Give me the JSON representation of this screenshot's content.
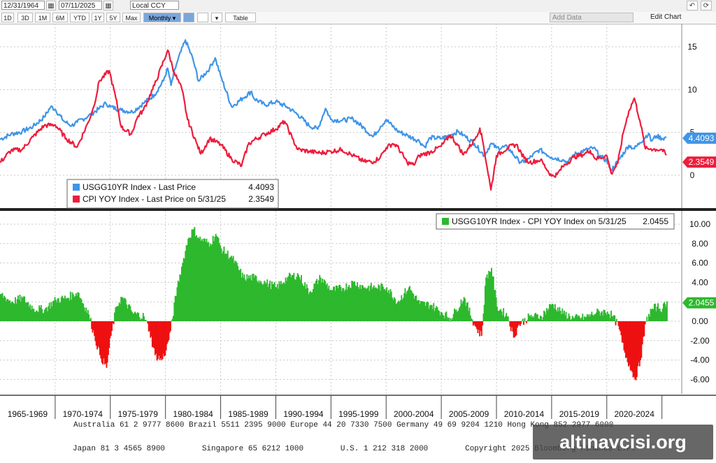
{
  "toolbar": {
    "start_date": "12/31/1964",
    "end_date": "07/11/2025",
    "currency": "Local CCY",
    "ranges": [
      "1D",
      "3D",
      "1M",
      "6M",
      "YTD",
      "1Y",
      "5Y",
      "Max"
    ],
    "period": "Monthly ▾",
    "table_label": "Table",
    "add_data": "Add Data",
    "edit_chart": "Edit Chart"
  },
  "colors": {
    "blue": "#3f95e8",
    "red": "#ee1c3c",
    "green": "#2db82d",
    "neg": "#ee1111"
  },
  "chart_data": [
    {
      "type": "line",
      "series": [
        {
          "name": "USGG10YR Index - Last Price",
          "last_label": "4.4093",
          "color": "#3f95e8",
          "x": [
            1965.0,
            1966.0,
            1967.0,
            1968.0,
            1969.0,
            1969.6,
            1970.0,
            1970.8,
            1971.5,
            1972.0,
            1973.0,
            1974.0,
            1974.6,
            1975.0,
            1976.0,
            1977.0,
            1978.0,
            1979.0,
            1979.8,
            1980.2,
            1980.5,
            1981.0,
            1981.8,
            1982.5,
            1983.0,
            1984.0,
            1984.5,
            1985.0,
            1986.0,
            1987.0,
            1987.8,
            1988.0,
            1989.0,
            1990.0,
            1991.0,
            1992.0,
            1993.0,
            1993.8,
            1994.5,
            1995.0,
            1996.0,
            1997.0,
            1998.0,
            1998.8,
            1999.5,
            2000.0,
            2001.0,
            2002.0,
            2003.0,
            2003.5,
            2004.0,
            2005.0,
            2006.0,
            2006.5,
            2007.0,
            2008.0,
            2008.9,
            2009.5,
            2010.0,
            2011.0,
            2012.0,
            2012.5,
            2013.0,
            2013.9,
            2014.5,
            2015.0,
            2016.0,
            2016.5,
            2017.0,
            2018.0,
            2018.8,
            2019.5,
            2020.0,
            2020.4,
            2021.0,
            2022.0,
            2022.5,
            2023.0,
            2023.8,
            2024.0,
            2024.5,
            2025.0,
            2025.4
          ],
          "y": [
            4.2,
            4.8,
            5.1,
            5.7,
            6.8,
            8.0,
            7.7,
            6.3,
            5.8,
            6.2,
            6.9,
            7.8,
            8.4,
            8.0,
            7.6,
            7.4,
            8.4,
            9.4,
            11.0,
            12.5,
            10.5,
            13.0,
            15.8,
            13.5,
            11.0,
            12.5,
            13.7,
            11.6,
            8.0,
            9.0,
            9.8,
            9.0,
            8.2,
            8.6,
            8.0,
            7.1,
            5.8,
            5.4,
            7.8,
            6.5,
            6.4,
            6.6,
            5.5,
            4.5,
            5.7,
            6.5,
            5.2,
            4.6,
            4.0,
            3.3,
            4.4,
            4.3,
            4.8,
            5.1,
            4.7,
            3.7,
            2.3,
            3.7,
            3.2,
            3.3,
            1.7,
            1.5,
            2.0,
            3.0,
            2.5,
            2.1,
            1.8,
            1.5,
            2.4,
            2.9,
            3.2,
            2.1,
            1.7,
            0.6,
            1.6,
            3.5,
            3.1,
            3.8,
            4.9,
            4.0,
            4.6,
            4.3,
            4.4
          ]
        },
        {
          "name": "CPI YOY Index - Last Price on 5/31/25",
          "last_label": "2.3549",
          "color": "#ee1c3c",
          "x": [
            1965.0,
            1966.0,
            1967.0,
            1968.0,
            1969.0,
            1970.0,
            1971.0,
            1972.0,
            1973.0,
            1973.5,
            1974.0,
            1974.9,
            1975.5,
            1976.0,
            1976.9,
            1977.5,
            1978.0,
            1979.0,
            1980.2,
            1980.8,
            1981.5,
            1982.0,
            1982.8,
            1983.2,
            1984.0,
            1985.0,
            1986.0,
            1986.9,
            1987.5,
            1988.0,
            1989.0,
            1990.0,
            1990.8,
            1991.5,
            1992.0,
            1993.0,
            1994.0,
            1995.0,
            1996.0,
            1997.0,
            1998.0,
            1998.9,
            1999.5,
            2000.0,
            2000.6,
            2001.0,
            2001.9,
            2002.5,
            2003.0,
            2004.0,
            2005.0,
            2005.8,
            2006.5,
            2007.0,
            2008.0,
            2008.5,
            2008.8,
            2009.5,
            2010.0,
            2011.0,
            2011.8,
            2012.5,
            2013.0,
            2014.0,
            2015.0,
            2015.5,
            2016.0,
            2017.0,
            2018.0,
            2018.5,
            2019.0,
            2020.0,
            2020.4,
            2021.0,
            2021.5,
            2022.0,
            2022.5,
            2023.0,
            2023.5,
            2024.0,
            2024.5,
            2025.0,
            2025.4
          ],
          "y": [
            1.5,
            2.9,
            3.0,
            4.5,
            5.8,
            5.9,
            4.3,
            3.3,
            6.2,
            8.0,
            11.0,
            12.2,
            9.0,
            5.6,
            4.8,
            6.9,
            7.6,
            10.5,
            14.6,
            12.0,
            10.0,
            6.5,
            3.8,
            2.5,
            4.3,
            3.6,
            1.9,
            1.1,
            3.6,
            4.1,
            4.8,
            5.4,
            6.3,
            4.3,
            3.0,
            2.8,
            2.6,
            2.8,
            3.0,
            2.3,
            1.6,
            1.6,
            2.2,
            3.2,
            3.7,
            3.4,
            1.5,
            1.2,
            2.3,
            2.7,
            3.4,
            4.7,
            3.5,
            2.4,
            4.1,
            5.5,
            3.7,
            -1.7,
            2.3,
            3.2,
            3.6,
            2.0,
            1.5,
            1.8,
            -0.1,
            0.1,
            1.0,
            2.1,
            2.5,
            2.9,
            1.9,
            2.3,
            0.2,
            1.4,
            5.0,
            7.5,
            9.0,
            6.4,
            3.1,
            3.1,
            3.0,
            3.0,
            2.35
          ]
        }
      ],
      "ylim": [
        -2,
        17
      ],
      "yticks": [
        "0",
        "5",
        "10",
        "15"
      ],
      "legend": [
        {
          "name": "USGG10YR Index - Last Price",
          "value": "4.4093"
        },
        {
          "name": "CPI YOY Index - Last Price on 5/31/25",
          "value": "2.3549"
        }
      ]
    },
    {
      "type": "area",
      "series": [
        {
          "name": "USGG10YR Index - CPI YOY Index on 5/31/25",
          "last_label": "2.0455",
          "x": [
            1965.0,
            1966.0,
            1967.0,
            1968.0,
            1969.0,
            1970.0,
            1971.0,
            1972.0,
            1973.0,
            1973.5,
            1974.0,
            1974.6,
            1975.0,
            1975.5,
            1976.0,
            1977.0,
            1978.0,
            1978.5,
            1979.0,
            1979.6,
            1980.0,
            1980.4,
            1981.0,
            1981.5,
            1982.0,
            1982.5,
            1983.0,
            1984.0,
            1984.5,
            1985.0,
            1986.0,
            1987.0,
            1988.0,
            1989.0,
            1990.0,
            1991.0,
            1992.0,
            1993.0,
            1994.0,
            1995.0,
            1996.0,
            1997.0,
            1998.0,
            1999.0,
            2000.0,
            2001.0,
            2002.0,
            2003.0,
            2004.0,
            2005.0,
            2005.8,
            2006.3,
            2007.0,
            2008.0,
            2008.6,
            2009.0,
            2009.5,
            2010.0,
            2011.0,
            2011.5,
            2012.0,
            2013.0,
            2014.0,
            2015.0,
            2016.0,
            2017.0,
            2018.0,
            2019.0,
            2020.0,
            2020.5,
            2021.0,
            2021.5,
            2022.0,
            2022.5,
            2023.0,
            2023.5,
            2024.0,
            2024.5,
            2025.0,
            2025.4
          ],
          "y": [
            2.8,
            2.0,
            2.4,
            1.3,
            1.2,
            2.2,
            2.4,
            3.0,
            0.7,
            -1.5,
            -3.5,
            -4.8,
            -1.5,
            1.5,
            2.5,
            0.8,
            0.5,
            -1.0,
            -3.5,
            -4.0,
            -3.0,
            -1.0,
            3.5,
            6.0,
            8.5,
            9.5,
            8.5,
            8.0,
            9.0,
            7.5,
            6.5,
            4.5,
            4.5,
            4.0,
            3.5,
            4.5,
            4.8,
            3.0,
            4.5,
            3.2,
            3.4,
            4.0,
            3.5,
            3.5,
            3.5,
            2.0,
            3.5,
            1.8,
            1.7,
            0.9,
            0.3,
            1.2,
            2.5,
            -0.5,
            -1.5,
            4.5,
            5.5,
            1.5,
            0.5,
            -1.7,
            -0.3,
            0.5,
            0.5,
            1.8,
            0.8,
            0.3,
            0.4,
            0.9,
            1.0,
            0.5,
            -0.5,
            -3.0,
            -4.5,
            -6.0,
            -4.0,
            0.0,
            1.2,
            1.5,
            1.3,
            2.05
          ]
        }
      ],
      "ylim": [
        -7,
        11
      ],
      "yticks": [
        "10.00",
        "8.00",
        "6.00",
        "4.00",
        "2.00",
        "0.00",
        "-2.00",
        "-4.00",
        "-6.00"
      ],
      "legend": [
        {
          "name": "USGG10YR Index - CPI YOY Index on 5/31/25",
          "value": "2.0455"
        }
      ]
    }
  ],
  "x_axis": {
    "ticks": [
      "1965-1969",
      "1970-1974",
      "1975-1979",
      "1980-1984",
      "1985-1989",
      "1990-1994",
      "1995-1999",
      "2000-2004",
      "2005-2009",
      "2010-2014",
      "2015-2019",
      "2020-2024"
    ]
  },
  "footer": {
    "line1": "Australia 61 2 9777 8600 Brazil 5511 2395 9000 Europe 44 20 7330 7500 Germany 49 69 9204 1210 Hong Kong 852 2977 6000",
    "line2": "Japan 81 3 4565 8900        Singapore 65 6212 1000        U.S. 1 212 318 2000        Copyright 2025 Bloomberg Finance L.P."
  },
  "watermark": "altinavcisi.org"
}
